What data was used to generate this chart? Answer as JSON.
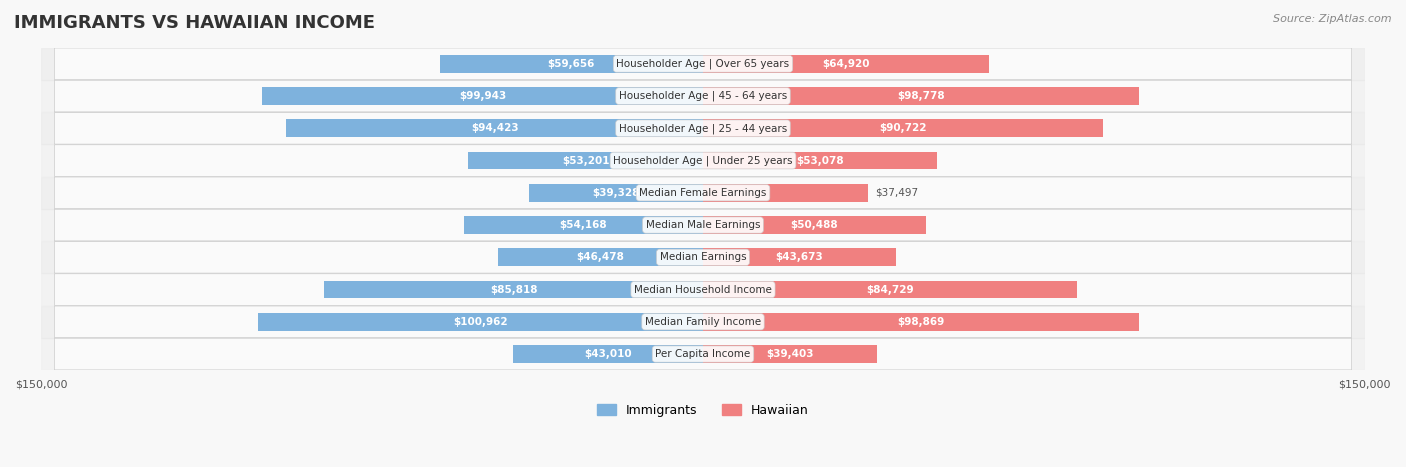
{
  "title": "IMMIGRANTS VS HAWAIIAN INCOME",
  "source": "Source: ZipAtlas.com",
  "categories": [
    "Per Capita Income",
    "Median Family Income",
    "Median Household Income",
    "Median Earnings",
    "Median Male Earnings",
    "Median Female Earnings",
    "Householder Age | Under 25 years",
    "Householder Age | 25 - 44 years",
    "Householder Age | 45 - 64 years",
    "Householder Age | Over 65 years"
  ],
  "immigrants": [
    43010,
    100962,
    85818,
    46478,
    54168,
    39328,
    53201,
    94423,
    99943,
    59656
  ],
  "hawaiian": [
    39403,
    98869,
    84729,
    43673,
    50488,
    37497,
    53078,
    90722,
    98778,
    64920
  ],
  "max_val": 150000,
  "immigrant_color": "#7EB2DD",
  "hawaiian_color": "#F08080",
  "immigrant_color_dark": "#5B9BD5",
  "hawaiian_color_dark": "#F06292",
  "label_color_dark_blue": "#5B9BD5",
  "label_color_dark_pink": "#E91E8C",
  "bar_height": 0.55,
  "bg_color": "#F5F5F5",
  "row_bg": "#FFFFFF",
  "row_alt_bg": "#F0F0F0",
  "legend_immigrant_color": "#7EB2DD",
  "legend_hawaiian_color": "#F08080"
}
